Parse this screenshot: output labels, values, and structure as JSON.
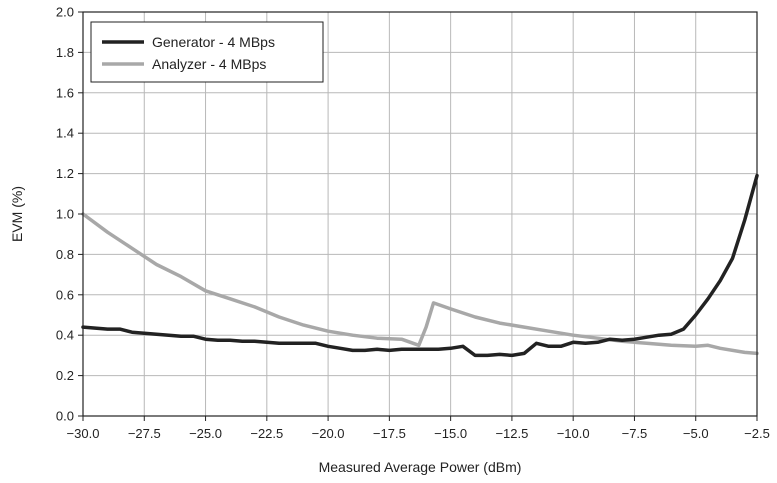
{
  "chart_data": {
    "type": "line",
    "title": "",
    "xlabel": "Measured Average Power (dBm)",
    "ylabel": "EVM (%)",
    "xlim": [
      -30.0,
      -2.5
    ],
    "ylim": [
      0.0,
      2.0
    ],
    "grid": true,
    "legend_position": "top-left",
    "x_ticks": [
      "−30.0",
      "−27.5",
      "−25.0",
      "−22.5",
      "−20.0",
      "−17.5",
      "−15.0",
      "−12.5",
      "−10.0",
      "−7.5",
      "−5.0",
      "−2.5"
    ],
    "x_tick_values": [
      -30.0,
      -27.5,
      -25.0,
      -22.5,
      -20.0,
      -17.5,
      -15.0,
      -12.5,
      -10.0,
      -7.5,
      -5.0,
      -2.5
    ],
    "y_ticks": [
      "0.0",
      "0.2",
      "0.4",
      "0.6",
      "0.8",
      "1.0",
      "1.2",
      "1.4",
      "1.6",
      "1.8",
      "2.0"
    ],
    "y_tick_values": [
      0.0,
      0.2,
      0.4,
      0.6,
      0.8,
      1.0,
      1.2,
      1.4,
      1.6,
      1.8,
      2.0
    ],
    "series": [
      {
        "name": "Generator - 4 MBps",
        "color": "#222222",
        "x": [
          -30.0,
          -29.5,
          -29.0,
          -28.5,
          -28.0,
          -27.5,
          -27.0,
          -26.5,
          -26.0,
          -25.5,
          -25.0,
          -24.5,
          -24.0,
          -23.5,
          -23.0,
          -22.5,
          -22.0,
          -21.5,
          -21.0,
          -20.5,
          -20.0,
          -19.5,
          -19.0,
          -18.5,
          -18.0,
          -17.5,
          -17.0,
          -16.5,
          -16.0,
          -15.5,
          -15.0,
          -14.5,
          -14.0,
          -13.5,
          -13.0,
          -12.5,
          -12.0,
          -11.5,
          -11.0,
          -10.5,
          -10.0,
          -9.5,
          -9.0,
          -8.5,
          -8.0,
          -7.5,
          -7.0,
          -6.5,
          -6.0,
          -5.5,
          -5.0,
          -4.5,
          -4.0,
          -3.5,
          -3.0,
          -2.5
        ],
        "y": [
          0.44,
          0.435,
          0.43,
          0.43,
          0.415,
          0.41,
          0.405,
          0.4,
          0.395,
          0.395,
          0.38,
          0.375,
          0.375,
          0.37,
          0.37,
          0.365,
          0.36,
          0.36,
          0.36,
          0.36,
          0.345,
          0.335,
          0.325,
          0.325,
          0.33,
          0.325,
          0.33,
          0.33,
          0.33,
          0.33,
          0.335,
          0.345,
          0.3,
          0.3,
          0.305,
          0.3,
          0.31,
          0.36,
          0.345,
          0.345,
          0.365,
          0.36,
          0.365,
          0.38,
          0.375,
          0.38,
          0.39,
          0.4,
          0.405,
          0.43,
          0.5,
          0.58,
          0.67,
          0.78,
          0.97,
          1.19
        ]
      },
      {
        "name": "Analyzer - 4 MBps",
        "color": "#a8a8a8",
        "x": [
          -30.0,
          -29.0,
          -28.0,
          -27.0,
          -26.0,
          -25.0,
          -24.0,
          -23.0,
          -22.0,
          -21.0,
          -20.0,
          -19.0,
          -18.0,
          -17.0,
          -16.3,
          -16.0,
          -15.7,
          -15.0,
          -14.0,
          -13.0,
          -12.0,
          -11.0,
          -10.0,
          -9.0,
          -8.0,
          -7.0,
          -6.0,
          -5.0,
          -4.5,
          -4.0,
          -3.0,
          -2.5
        ],
        "y": [
          1.0,
          0.91,
          0.83,
          0.75,
          0.69,
          0.62,
          0.58,
          0.54,
          0.49,
          0.45,
          0.42,
          0.4,
          0.385,
          0.38,
          0.35,
          0.44,
          0.56,
          0.53,
          0.49,
          0.46,
          0.44,
          0.42,
          0.4,
          0.385,
          0.37,
          0.36,
          0.35,
          0.345,
          0.35,
          0.335,
          0.315,
          0.31
        ]
      }
    ]
  }
}
